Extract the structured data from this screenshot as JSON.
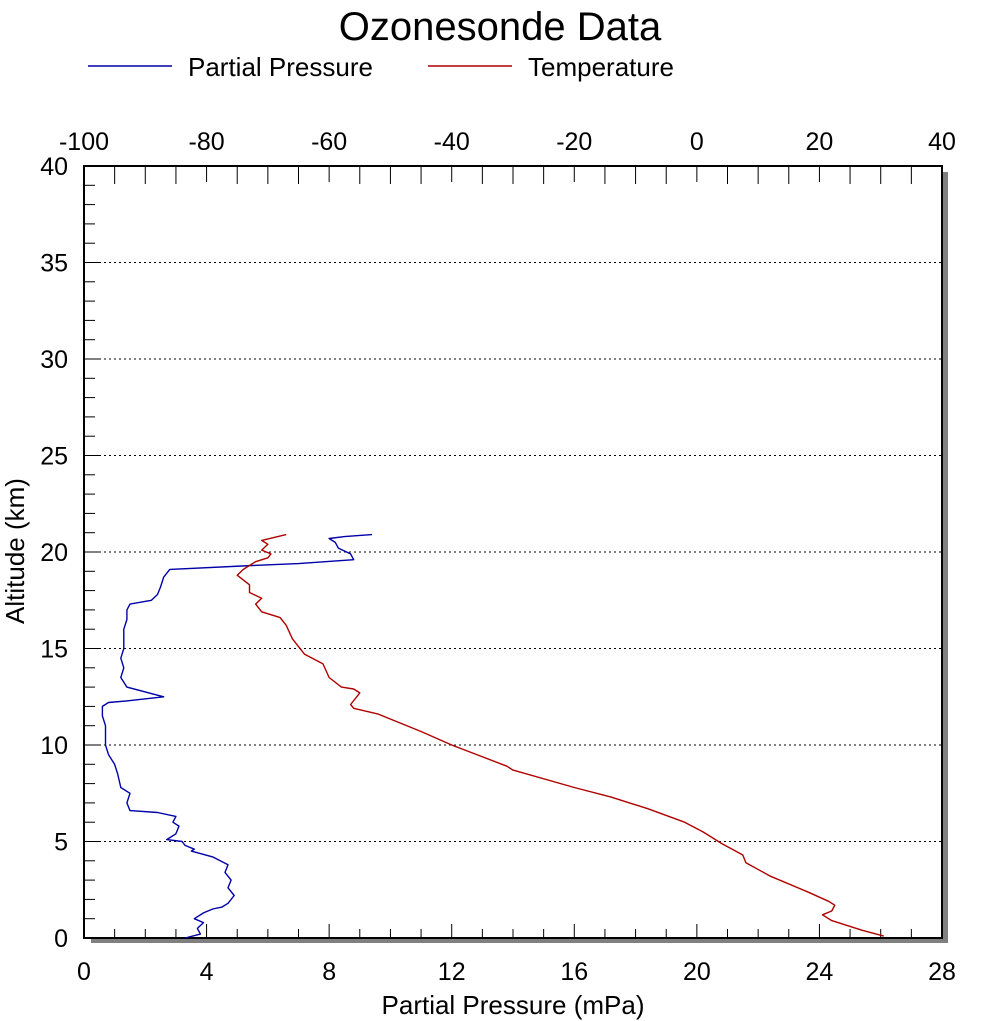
{
  "chart_data": {
    "type": "line",
    "title": "Ozonesonde Data",
    "xlabel": "Partial Pressure (mPa)",
    "ylabel": "Altitude (km)",
    "x_bottom_range": [
      0,
      28
    ],
    "x_top_range": [
      -100,
      40
    ],
    "ylim": [
      0,
      40
    ],
    "x_bottom_ticks": [
      "0",
      "4",
      "8",
      "12",
      "16",
      "20",
      "24",
      "28"
    ],
    "x_top_ticks": [
      "-100",
      "-80",
      "-60",
      "-40",
      "-20",
      "0",
      "20",
      "40"
    ],
    "y_ticks": [
      "0",
      "5",
      "10",
      "15",
      "20",
      "25",
      "30",
      "35",
      "40"
    ],
    "grid": "horizontal dotted",
    "legend_position": "top",
    "series": [
      {
        "name": "Partial Pressure",
        "axis": "bottom",
        "color": "#0000a8",
        "points": [
          [
            3.3,
            0.0
          ],
          [
            3.8,
            0.2
          ],
          [
            3.7,
            0.5
          ],
          [
            3.9,
            0.8
          ],
          [
            3.6,
            1.0
          ],
          [
            3.9,
            1.3
          ],
          [
            4.2,
            1.5
          ],
          [
            4.5,
            1.6
          ],
          [
            4.7,
            1.8
          ],
          [
            4.9,
            2.2
          ],
          [
            4.7,
            2.6
          ],
          [
            4.8,
            3.0
          ],
          [
            4.6,
            3.4
          ],
          [
            4.7,
            3.8
          ],
          [
            4.2,
            4.2
          ],
          [
            3.5,
            4.5
          ],
          [
            3.6,
            4.6
          ],
          [
            3.3,
            4.8
          ],
          [
            3.2,
            5.0
          ],
          [
            2.7,
            5.1
          ],
          [
            3.0,
            5.4
          ],
          [
            3.1,
            5.8
          ],
          [
            2.9,
            6.0
          ],
          [
            3.0,
            6.3
          ],
          [
            2.4,
            6.5
          ],
          [
            1.5,
            6.6
          ],
          [
            1.4,
            7.0
          ],
          [
            1.5,
            7.5
          ],
          [
            1.2,
            7.8
          ],
          [
            1.1,
            8.5
          ],
          [
            1.0,
            9.0
          ],
          [
            0.8,
            9.5
          ],
          [
            0.7,
            10.0
          ],
          [
            0.7,
            11.0
          ],
          [
            0.6,
            11.5
          ],
          [
            0.6,
            12.0
          ],
          [
            0.8,
            12.2
          ],
          [
            1.5,
            12.3
          ],
          [
            2.6,
            12.5
          ],
          [
            1.4,
            13.0
          ],
          [
            1.2,
            13.5
          ],
          [
            1.3,
            14.0
          ],
          [
            1.2,
            14.5
          ],
          [
            1.3,
            15.0
          ],
          [
            1.3,
            16.0
          ],
          [
            1.4,
            16.5
          ],
          [
            1.4,
            17.0
          ],
          [
            1.5,
            17.3
          ],
          [
            2.2,
            17.5
          ],
          [
            2.4,
            17.8
          ],
          [
            2.5,
            18.2
          ],
          [
            2.6,
            18.7
          ],
          [
            2.8,
            19.1
          ],
          [
            5.5,
            19.3
          ],
          [
            7.0,
            19.4
          ],
          [
            8.8,
            19.6
          ],
          [
            8.7,
            19.9
          ],
          [
            8.3,
            20.2
          ],
          [
            8.2,
            20.5
          ],
          [
            8.0,
            20.7
          ],
          [
            8.5,
            20.8
          ],
          [
            9.4,
            20.9
          ]
        ]
      },
      {
        "name": "Temperature",
        "axis": "top",
        "color": "#b00000",
        "points": [
          [
            30.5,
            0.1
          ],
          [
            27.0,
            0.4
          ],
          [
            22.0,
            0.9
          ],
          [
            20.5,
            1.2
          ],
          [
            22.0,
            1.4
          ],
          [
            22.5,
            1.7
          ],
          [
            21.5,
            1.9
          ],
          [
            18.0,
            2.4
          ],
          [
            12.0,
            3.2
          ],
          [
            8.0,
            3.9
          ],
          [
            7.5,
            4.3
          ],
          [
            4.0,
            4.9
          ],
          [
            1.0,
            5.5
          ],
          [
            -2.0,
            6.0
          ],
          [
            -8.0,
            6.7
          ],
          [
            -14.0,
            7.3
          ],
          [
            -20.0,
            7.8
          ],
          [
            -30.0,
            8.7
          ],
          [
            -31.0,
            8.9
          ],
          [
            -40.0,
            10.0
          ],
          [
            -45.0,
            10.7
          ],
          [
            -52.0,
            11.6
          ],
          [
            -56.0,
            11.9
          ],
          [
            -56.5,
            12.1
          ],
          [
            -55.0,
            12.7
          ],
          [
            -56.0,
            12.9
          ],
          [
            -58.0,
            13.0
          ],
          [
            -60.0,
            13.5
          ],
          [
            -61.0,
            14.2
          ],
          [
            -64.0,
            14.7
          ],
          [
            -66.0,
            15.5
          ],
          [
            -67.0,
            16.2
          ],
          [
            -68.0,
            16.6
          ],
          [
            -71.0,
            16.9
          ],
          [
            -72.0,
            17.3
          ],
          [
            -71.0,
            17.6
          ],
          [
            -73.0,
            17.9
          ],
          [
            -73.0,
            18.3
          ],
          [
            -75.0,
            18.8
          ],
          [
            -74.0,
            19.1
          ],
          [
            -72.0,
            19.5
          ],
          [
            -70.0,
            19.7
          ],
          [
            -69.5,
            19.9
          ],
          [
            -71.0,
            20.1
          ],
          [
            -70.0,
            20.4
          ],
          [
            -71.0,
            20.6
          ],
          [
            -67.0,
            20.9
          ]
        ]
      }
    ]
  }
}
